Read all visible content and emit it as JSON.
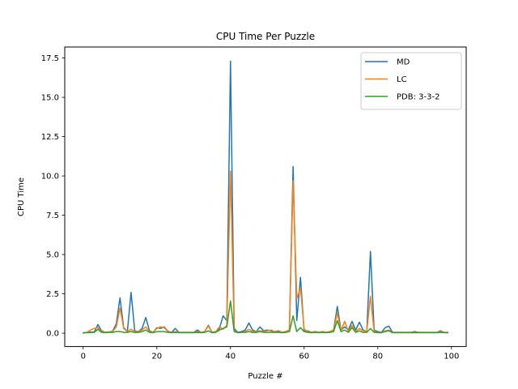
{
  "chart_data": {
    "type": "line",
    "title": "CPU Time Per Puzzle",
    "xlabel": "Puzzle #",
    "ylabel": "CPU Time",
    "xlim": [
      -5,
      104
    ],
    "ylim": [
      -0.85,
      18.2
    ],
    "xticks": [
      0,
      20,
      40,
      60,
      80,
      100
    ],
    "xtick_labels": [
      "0",
      "20",
      "40",
      "60",
      "80",
      "100"
    ],
    "yticks": [
      0.0,
      2.5,
      5.0,
      7.5,
      10.0,
      12.5,
      15.0,
      17.5
    ],
    "ytick_labels": [
      "0.0",
      "2.5",
      "5.0",
      "7.5",
      "10.0",
      "12.5",
      "15.0",
      "17.5"
    ],
    "grid": false,
    "legend_position": "top-right",
    "x": [
      0,
      1,
      2,
      3,
      4,
      5,
      6,
      7,
      8,
      9,
      10,
      11,
      12,
      13,
      14,
      15,
      16,
      17,
      18,
      19,
      20,
      21,
      22,
      23,
      24,
      25,
      26,
      27,
      28,
      29,
      30,
      31,
      32,
      33,
      34,
      35,
      36,
      37,
      38,
      39,
      40,
      41,
      42,
      43,
      44,
      45,
      46,
      47,
      48,
      49,
      50,
      51,
      52,
      53,
      54,
      55,
      56,
      57,
      58,
      59,
      60,
      61,
      62,
      63,
      64,
      65,
      66,
      67,
      68,
      69,
      70,
      71,
      72,
      73,
      74,
      75,
      76,
      77,
      78,
      79,
      80,
      81,
      82,
      83,
      84,
      85,
      86,
      87,
      88,
      89,
      90,
      91,
      92,
      93,
      94,
      95,
      96,
      97,
      98,
      99
    ],
    "series": [
      {
        "name": "MD",
        "color": "#1f77b4",
        "values": [
          0.02,
          0.05,
          0.08,
          0.06,
          0.55,
          0.15,
          0.05,
          0.08,
          0.12,
          0.6,
          2.25,
          0.35,
          0.1,
          2.6,
          0.15,
          0.1,
          0.3,
          1.0,
          0.15,
          0.05,
          0.35,
          0.3,
          0.4,
          0.12,
          0.05,
          0.3,
          0.05,
          0.05,
          0.05,
          0.05,
          0.05,
          0.2,
          0.05,
          0.1,
          0.5,
          0.05,
          0.1,
          0.3,
          1.1,
          0.8,
          17.3,
          0.3,
          0.05,
          0.1,
          0.2,
          0.65,
          0.2,
          0.1,
          0.4,
          0.15,
          0.2,
          0.15,
          0.1,
          0.15,
          0.05,
          0.1,
          0.2,
          10.6,
          0.8,
          3.55,
          0.1,
          0.15,
          0.05,
          0.1,
          0.05,
          0.1,
          0.05,
          0.1,
          0.2,
          1.7,
          0.2,
          0.4,
          0.2,
          0.75,
          0.2,
          0.7,
          0.2,
          0.1,
          5.2,
          0.2,
          0.1,
          0.05,
          0.35,
          0.45,
          0.05,
          0.05,
          0.05,
          0.05,
          0.05,
          0.05,
          0.1,
          0.05,
          0.05,
          0.05,
          0.05,
          0.05,
          0.05,
          0.15,
          0.05,
          0.05
        ]
      },
      {
        "name": "LC",
        "color": "#ff7f0e",
        "values": [
          0.02,
          0.05,
          0.2,
          0.3,
          0.35,
          0.1,
          0.05,
          0.08,
          0.1,
          0.4,
          1.6,
          0.3,
          0.1,
          0.25,
          0.1,
          0.1,
          0.2,
          0.4,
          0.1,
          0.05,
          0.3,
          0.4,
          0.35,
          0.1,
          0.05,
          0.1,
          0.05,
          0.05,
          0.05,
          0.05,
          0.05,
          0.1,
          0.05,
          0.1,
          0.45,
          0.05,
          0.1,
          0.4,
          0.25,
          0.5,
          10.3,
          0.15,
          0.05,
          0.05,
          0.1,
          0.25,
          0.1,
          0.1,
          0.15,
          0.1,
          0.15,
          0.2,
          0.1,
          0.1,
          0.05,
          0.1,
          0.2,
          9.7,
          2.2,
          2.85,
          0.25,
          0.1,
          0.05,
          0.1,
          0.05,
          0.1,
          0.05,
          0.1,
          0.2,
          1.3,
          0.15,
          0.75,
          0.1,
          0.5,
          0.1,
          0.3,
          0.15,
          0.1,
          2.35,
          0.1,
          0.05,
          0.05,
          0.15,
          0.2,
          0.05,
          0.05,
          0.05,
          0.05,
          0.05,
          0.05,
          0.05,
          0.05,
          0.05,
          0.05,
          0.05,
          0.05,
          0.05,
          0.1,
          0.05,
          0.05
        ]
      },
      {
        "name": "PDB: 3-3-2",
        "color": "#2ca02c",
        "values": [
          0.02,
          0.03,
          0.05,
          0.05,
          0.25,
          0.05,
          0.03,
          0.05,
          0.05,
          0.1,
          0.1,
          0.05,
          0.05,
          0.1,
          0.05,
          0.05,
          0.1,
          0.2,
          0.05,
          0.03,
          0.1,
          0.1,
          0.1,
          0.05,
          0.03,
          0.05,
          0.03,
          0.03,
          0.03,
          0.03,
          0.03,
          0.05,
          0.03,
          0.05,
          0.15,
          0.03,
          0.05,
          0.2,
          0.3,
          0.4,
          2.05,
          0.1,
          0.03,
          0.05,
          0.05,
          0.1,
          0.05,
          0.05,
          0.1,
          0.05,
          0.05,
          0.05,
          0.05,
          0.05,
          0.03,
          0.05,
          0.1,
          1.1,
          0.1,
          0.35,
          0.1,
          0.05,
          0.03,
          0.05,
          0.03,
          0.05,
          0.03,
          0.05,
          0.1,
          0.8,
          0.1,
          0.2,
          0.05,
          0.35,
          0.05,
          0.15,
          0.05,
          0.05,
          0.3,
          0.05,
          0.03,
          0.03,
          0.1,
          0.15,
          0.03,
          0.03,
          0.03,
          0.03,
          0.03,
          0.03,
          0.03,
          0.03,
          0.03,
          0.03,
          0.03,
          0.03,
          0.03,
          0.05,
          0.03,
          0.03
        ]
      }
    ]
  }
}
